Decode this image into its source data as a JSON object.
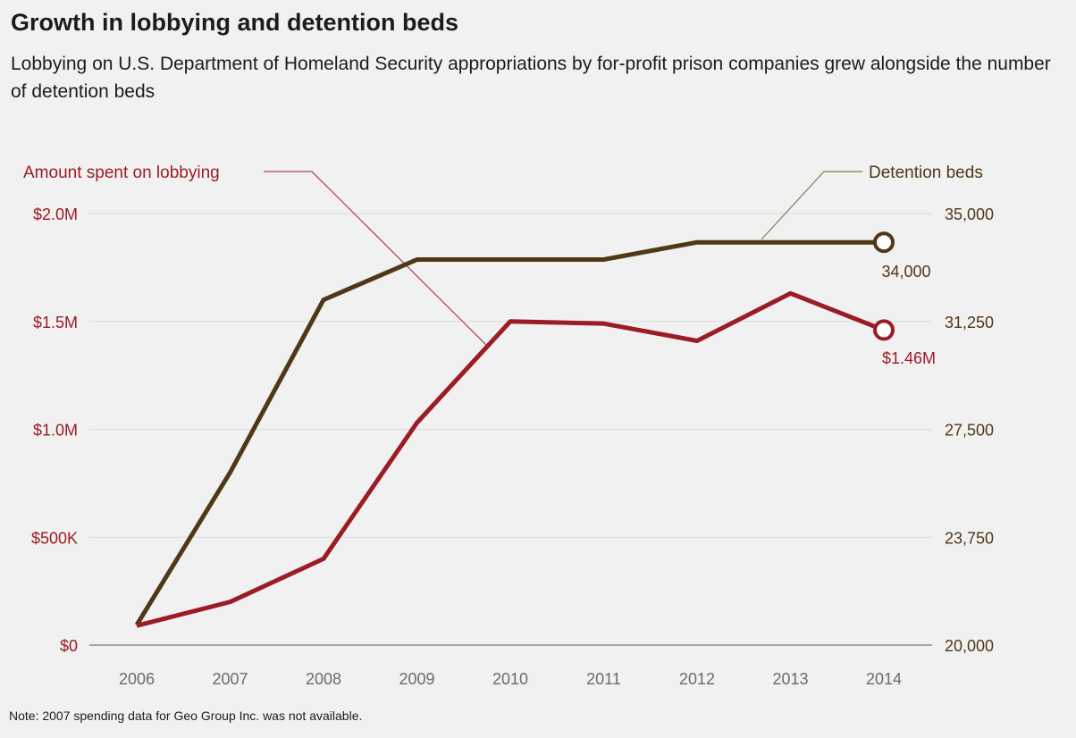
{
  "title": "Growth in lobbying and detention beds",
  "subtitle": "Lobbying on U.S. Department of Homeland Security appropriations by for-profit prison companies grew alongside the number of detention beds",
  "note": "Note: 2007 spending data for Geo Group Inc. was not available.",
  "colors": {
    "lobbying": "#9b1c24",
    "beds": "#4e3816",
    "grid": "#dcdcdc",
    "axis_x": "#777777",
    "leader_beds": "#8a7a50"
  },
  "chart_data": {
    "type": "line",
    "x": [
      "2006",
      "2007",
      "2008",
      "2009",
      "2010",
      "2011",
      "2012",
      "2013",
      "2014"
    ],
    "series": [
      {
        "name": "Amount spent on lobbying",
        "axis": "left",
        "values": [
          90000,
          200000,
          400000,
          1030000,
          1500000,
          1490000,
          1410000,
          1630000,
          1460000
        ],
        "end_label": "$1.46M"
      },
      {
        "name": "Detention beds",
        "axis": "right",
        "values": [
          20700,
          26000,
          32000,
          33400,
          33400,
          33400,
          34000,
          34000,
          34000
        ],
        "end_label": "34,000"
      }
    ],
    "left_axis": {
      "ylim": [
        0,
        2000000
      ],
      "ticks": [
        0,
        500000,
        1000000,
        1500000,
        2000000
      ],
      "tick_labels": [
        "$0",
        "$500K",
        "$1.0M",
        "$1.5M",
        "$2.0M"
      ]
    },
    "right_axis": {
      "ylim": [
        20000,
        35000
      ],
      "ticks": [
        20000,
        23750,
        27500,
        31250,
        35000
      ],
      "tick_labels": [
        "20,000",
        "23,750",
        "27,500",
        "31,250",
        "35,000"
      ]
    },
    "grid": true
  }
}
